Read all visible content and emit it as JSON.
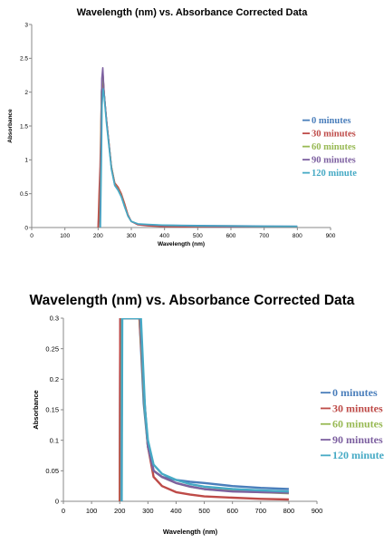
{
  "charts": [
    {
      "type": "line",
      "title": "Wavelength (nm) vs. Absorbance Corrected Data",
      "xlabel": "Wavelength (nm)",
      "ylabel": "Absorbance",
      "xlim": [
        0,
        900
      ],
      "ylim": [
        0,
        3
      ],
      "xticks": [
        "0",
        "100",
        "200",
        "300",
        "400",
        "500",
        "600",
        "700",
        "800",
        "900"
      ],
      "yticks": [
        "0",
        "0.5",
        "1",
        "1.5",
        "2",
        "2.5",
        "3"
      ],
      "legend_position": "right",
      "series": [
        {
          "name": "0 minutes",
          "color": "#4a7ebb"
        },
        {
          "name": "30 minutes",
          "color": "#be4b48"
        },
        {
          "name": "60 minutes",
          "color": "#98b954"
        },
        {
          "name": "90 minutes",
          "color": "#7d60a0"
        },
        {
          "name": "120 minute",
          "color": "#46aac5"
        }
      ]
    },
    {
      "type": "line",
      "title": "Wavelength (nm) vs. Absorbance Corrected Data",
      "xlabel": "Wavelength (nm)",
      "ylabel": "Absorbance",
      "xlim": [
        0,
        900
      ],
      "ylim": [
        0,
        0.3
      ],
      "xticks": [
        "0",
        "100",
        "200",
        "300",
        "400",
        "500",
        "600",
        "700",
        "800",
        "900"
      ],
      "yticks": [
        "0",
        "0.05",
        "0.1",
        "0.15",
        "0.2",
        "0.25",
        "0.3"
      ],
      "legend_position": "right",
      "series": [
        {
          "name": "0 minutes",
          "color": "#4a7ebb"
        },
        {
          "name": "30 minutes",
          "color": "#be4b48"
        },
        {
          "name": "60 minutes",
          "color": "#98b954"
        },
        {
          "name": "90 minutes",
          "color": "#7d60a0"
        },
        {
          "name": "120 minute",
          "color": "#46aac5"
        }
      ]
    }
  ],
  "chart_data": [
    {
      "type": "line",
      "title": "Wavelength (nm) vs. Absorbance Corrected Data",
      "xlabel": "Wavelength (nm)",
      "ylabel": "Absorbance",
      "xlim": [
        0,
        900
      ],
      "ylim": [
        0,
        3
      ],
      "grid": false,
      "legend": "right",
      "series": [
        {
          "name": "0 minutes",
          "x": [
            200,
            205,
            208,
            210,
            214,
            218,
            225,
            240,
            250,
            260,
            270,
            280,
            290,
            300,
            320,
            350,
            400,
            500,
            600,
            700,
            800
          ],
          "y": [
            0,
            0.45,
            1.2,
            2.0,
            2.25,
            2.0,
            1.6,
            0.9,
            0.65,
            0.58,
            0.48,
            0.33,
            0.18,
            0.09,
            0.05,
            0.04,
            0.035,
            0.03,
            0.025,
            0.022,
            0.02
          ]
        },
        {
          "name": "30 minutes",
          "x": [
            200,
            203,
            206,
            210,
            214,
            218,
            225,
            240,
            250,
            260,
            270,
            280,
            290,
            300,
            320,
            350,
            400,
            500,
            600,
            700,
            800
          ],
          "y": [
            0,
            0.5,
            0.9,
            1.9,
            2.3,
            2.0,
            1.6,
            0.9,
            0.66,
            0.6,
            0.5,
            0.35,
            0.19,
            0.09,
            0.04,
            0.025,
            0.015,
            0.008,
            0.006,
            0.004,
            0.003
          ]
        },
        {
          "name": "60 minutes",
          "x": [
            205,
            208,
            210,
            214,
            218,
            225,
            240,
            250,
            260,
            270,
            280,
            290,
            300,
            320,
            350,
            400,
            500,
            600,
            700,
            800
          ],
          "y": [
            0,
            1.1,
            2.0,
            2.3,
            2.0,
            1.6,
            0.9,
            0.64,
            0.57,
            0.47,
            0.32,
            0.17,
            0.09,
            0.05,
            0.04,
            0.03,
            0.02,
            0.017,
            0.015,
            0.013
          ]
        },
        {
          "name": "90 minutes",
          "x": [
            206,
            209,
            211,
            214,
            218,
            225,
            240,
            250,
            260,
            270,
            280,
            290,
            300,
            320,
            350,
            400,
            500,
            600,
            700,
            800
          ],
          "y": [
            0,
            1.2,
            2.2,
            2.36,
            2.0,
            1.6,
            0.88,
            0.63,
            0.56,
            0.46,
            0.31,
            0.17,
            0.09,
            0.05,
            0.04,
            0.03,
            0.02,
            0.016,
            0.015,
            0.014
          ]
        },
        {
          "name": "120 minute",
          "x": [
            207,
            210,
            212,
            215,
            218,
            225,
            240,
            250,
            260,
            270,
            280,
            290,
            300,
            320,
            350,
            400,
            500,
            600,
            700,
            800
          ],
          "y": [
            0,
            1.0,
            1.8,
            2.05,
            1.95,
            1.55,
            0.86,
            0.62,
            0.55,
            0.45,
            0.3,
            0.17,
            0.09,
            0.055,
            0.045,
            0.035,
            0.024,
            0.02,
            0.018,
            0.016
          ]
        }
      ]
    },
    {
      "type": "line",
      "title": "Wavelength (nm) vs. Absorbance Corrected Data",
      "xlabel": "Wavelength (nm)",
      "ylabel": "Absorbance",
      "xlim": [
        0,
        900
      ],
      "ylim": [
        0,
        0.3
      ],
      "grid": false,
      "legend": "right",
      "series": [
        {
          "name": "0 minutes",
          "x": [
            200,
            202,
            205,
            270,
            285,
            300,
            320,
            350,
            400,
            450,
            500,
            600,
            700,
            800
          ],
          "y": [
            0,
            0.3,
            0.3,
            0.3,
            0.16,
            0.09,
            0.05,
            0.04,
            0.035,
            0.032,
            0.03,
            0.025,
            0.022,
            0.02
          ]
        },
        {
          "name": "30 minutes",
          "x": [
            200,
            202,
            205,
            270,
            285,
            300,
            320,
            350,
            400,
            450,
            500,
            600,
            700,
            800
          ],
          "y": [
            0,
            0.3,
            0.3,
            0.3,
            0.18,
            0.09,
            0.04,
            0.025,
            0.015,
            0.011,
            0.008,
            0.006,
            0.004,
            0.003
          ]
        },
        {
          "name": "60 minutes",
          "x": [
            205,
            207,
            209,
            272,
            287,
            300,
            320,
            350,
            400,
            450,
            500,
            600,
            700,
            800
          ],
          "y": [
            0,
            0.3,
            0.3,
            0.3,
            0.16,
            0.09,
            0.05,
            0.04,
            0.03,
            0.024,
            0.02,
            0.017,
            0.015,
            0.013
          ]
        },
        {
          "name": "90 minutes",
          "x": [
            206,
            208,
            210,
            273,
            288,
            300,
            320,
            350,
            400,
            450,
            500,
            600,
            700,
            800
          ],
          "y": [
            0,
            0.3,
            0.3,
            0.3,
            0.16,
            0.09,
            0.05,
            0.04,
            0.03,
            0.024,
            0.02,
            0.016,
            0.015,
            0.014
          ]
        },
        {
          "name": "120 minute",
          "x": [
            207,
            209,
            211,
            275,
            290,
            300,
            320,
            350,
            400,
            450,
            500,
            600,
            700,
            800
          ],
          "y": [
            0,
            0.3,
            0.3,
            0.3,
            0.15,
            0.1,
            0.06,
            0.045,
            0.035,
            0.028,
            0.024,
            0.02,
            0.018,
            0.016
          ]
        }
      ]
    }
  ]
}
